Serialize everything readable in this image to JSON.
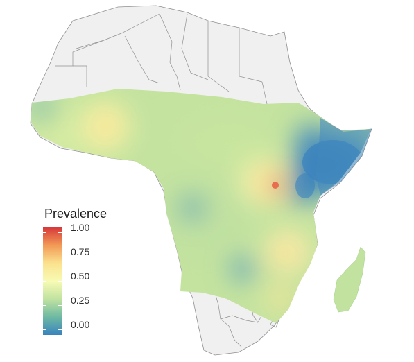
{
  "legend": {
    "title": "Prevalence",
    "ticks": [
      "1.00",
      "0.75",
      "0.50",
      "0.25",
      "0.00"
    ],
    "range": [
      0,
      1
    ],
    "colors": [
      "#d7393a",
      "#f29a56",
      "#fbe28f",
      "#f7fbb4",
      "#c0e2a0",
      "#6db9a3",
      "#3983bd"
    ]
  },
  "map": {
    "land_color": "#f0f0f0",
    "border_color": "#8f8f8f",
    "background_color": "#ffffff"
  }
}
